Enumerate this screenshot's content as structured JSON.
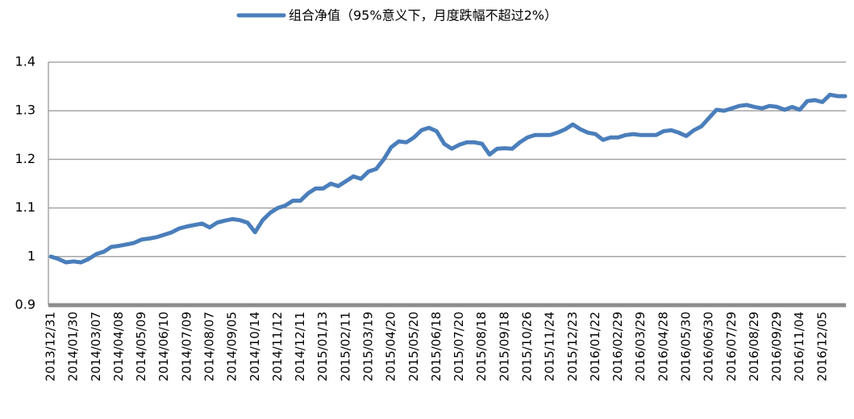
{
  "chart_data": {
    "type": "line",
    "legend_position": "top",
    "grid": true,
    "ylim": [
      0.9,
      1.4
    ],
    "yticks": [
      0.9,
      1,
      1.1,
      1.2,
      1.3,
      1.4
    ],
    "categories": [
      "2013/12/31",
      null,
      null,
      "2014/01/30",
      null,
      null,
      "2014/03/07",
      null,
      null,
      "2014/04/08",
      null,
      null,
      "2014/05/09",
      null,
      null,
      "2014/06/10",
      null,
      null,
      "2014/07/09",
      null,
      null,
      "2014/08/07",
      null,
      null,
      "2014/09/05",
      null,
      null,
      "2014/10/14",
      null,
      null,
      "2014/11/12",
      null,
      null,
      "2014/12/11",
      null,
      null,
      "2015/01/13",
      null,
      null,
      "2015/02/11",
      null,
      null,
      "2015/03/19",
      null,
      null,
      "2015/04/20",
      null,
      null,
      "2015/05/20",
      null,
      null,
      "2015/06/18",
      null,
      null,
      "2015/07/20",
      null,
      null,
      "2015/08/18",
      null,
      null,
      "2015/09/18",
      null,
      null,
      "2015/10/26",
      null,
      null,
      "2015/11/24",
      null,
      null,
      "2015/12/23",
      null,
      null,
      "2016/01/22",
      null,
      null,
      "2016/02/29",
      null,
      null,
      "2016/03/29",
      null,
      null,
      "2016/04/28",
      null,
      null,
      "2016/05/30",
      null,
      null,
      "2016/06/30",
      null,
      null,
      "2016/07/29",
      null,
      null,
      "2016/08/29",
      null,
      null,
      "2016/09/29",
      null,
      null,
      "2016/11/04",
      null,
      null,
      "2016/12/05",
      null,
      null,
      null
    ],
    "series": [
      {
        "name": "组合净值（95%意义下，月度跌幅不超过2%）",
        "color": "#4a7ebb",
        "values": [
          1.0,
          0.995,
          0.988,
          0.99,
          0.988,
          0.995,
          1.005,
          1.01,
          1.02,
          1.022,
          1.025,
          1.028,
          1.035,
          1.037,
          1.04,
          1.045,
          1.05,
          1.058,
          1.062,
          1.065,
          1.068,
          1.06,
          1.07,
          1.074,
          1.077,
          1.075,
          1.07,
          1.05,
          1.075,
          1.09,
          1.1,
          1.105,
          1.115,
          1.115,
          1.13,
          1.14,
          1.14,
          1.15,
          1.145,
          1.155,
          1.165,
          1.16,
          1.175,
          1.18,
          1.2,
          1.225,
          1.237,
          1.235,
          1.245,
          1.26,
          1.265,
          1.258,
          1.232,
          1.222,
          1.23,
          1.235,
          1.235,
          1.232,
          1.21,
          1.222,
          1.223,
          1.222,
          1.235,
          1.245,
          1.25,
          1.25,
          1.25,
          1.255,
          1.262,
          1.272,
          1.262,
          1.255,
          1.252,
          1.24,
          1.245,
          1.245,
          1.25,
          1.252,
          1.25,
          1.25,
          1.25,
          1.258,
          1.26,
          1.255,
          1.248,
          1.26,
          1.268,
          1.285,
          1.302,
          1.3,
          1.305,
          1.31,
          1.312,
          1.308,
          1.305,
          1.31,
          1.308,
          1.302,
          1.308,
          1.302,
          1.32,
          1.322,
          1.318,
          1.333,
          1.33,
          1.33
        ]
      }
    ]
  }
}
